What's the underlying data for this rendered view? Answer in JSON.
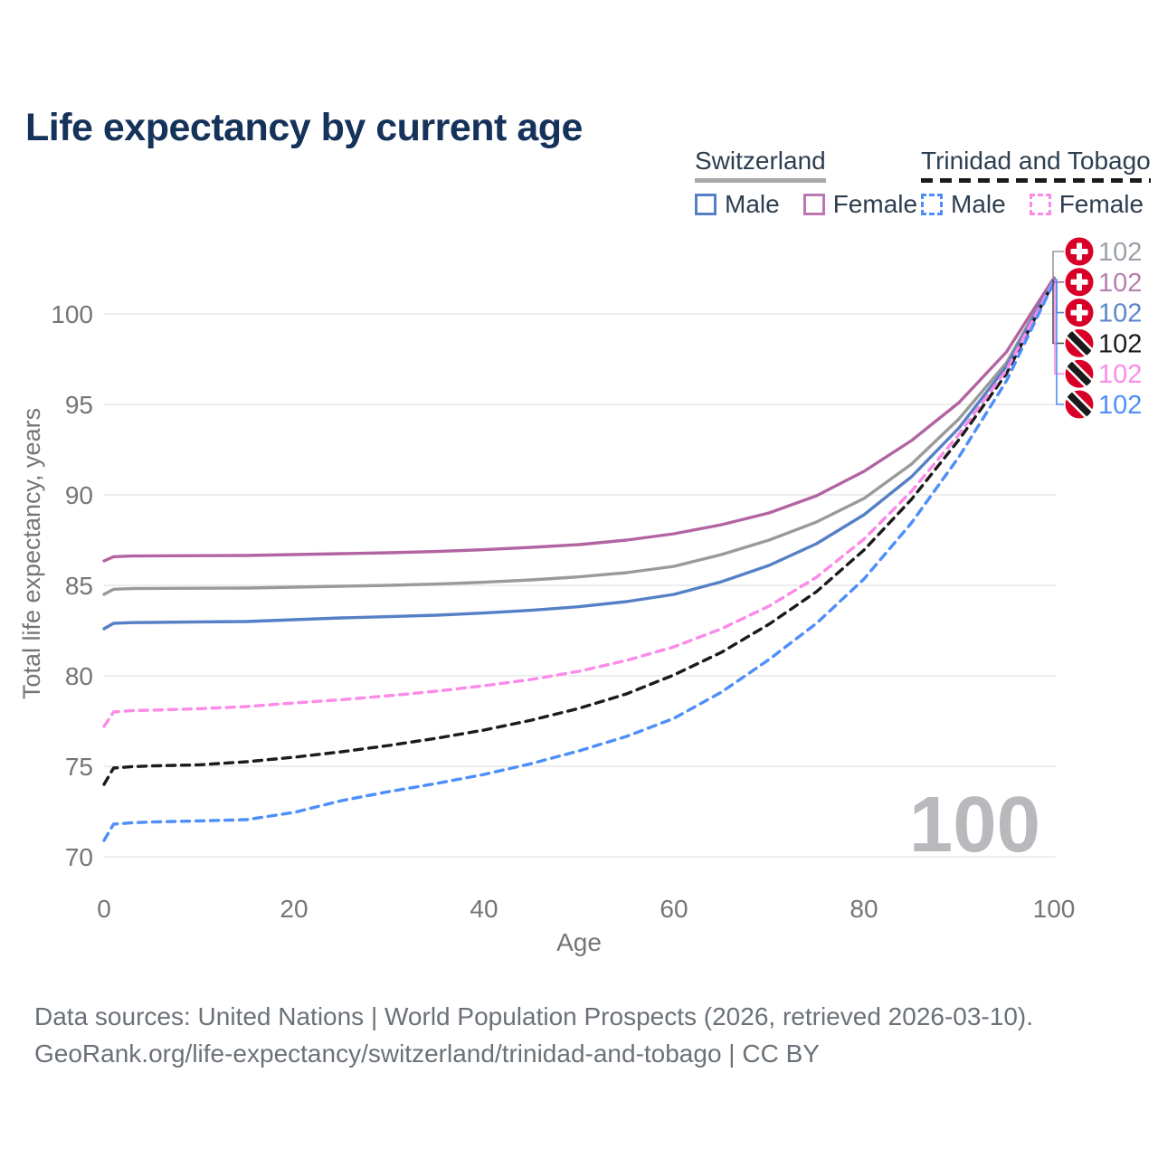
{
  "header": {
    "title": "Life expectancy by current age",
    "title_color": "#15325a"
  },
  "legend": {
    "text_color": "#2d3e50",
    "groups": [
      {
        "name": "Switzerland",
        "underline": "solid",
        "items": [
          {
            "label": "Male",
            "color": "#5580c6",
            "dashed": false
          },
          {
            "label": "Female",
            "color": "#bc77b2",
            "dashed": false
          }
        ]
      },
      {
        "name": "Trinidad and Tobago",
        "underline": "dashed",
        "items": [
          {
            "label": "Male",
            "color": "#4d8efa",
            "dashed": true
          },
          {
            "label": "Female",
            "color": "#fb8ae8",
            "dashed": true
          }
        ]
      }
    ]
  },
  "chart_data": {
    "type": "line",
    "title": "Life expectancy by current age",
    "xlabel": "Age",
    "ylabel": "Total life expectancy, years",
    "xlim": [
      0,
      100
    ],
    "ylim": [
      70,
      102
    ],
    "x_ticks": [
      0,
      20,
      40,
      60,
      80,
      100
    ],
    "y_ticks": [
      70,
      75,
      80,
      85,
      90,
      95,
      100
    ],
    "grid_color": "#e7e7e7",
    "tick_color": "#757575",
    "x": [
      0,
      1,
      3,
      5,
      10,
      15,
      20,
      25,
      30,
      35,
      40,
      45,
      50,
      55,
      60,
      65,
      70,
      75,
      80,
      85,
      90,
      95,
      100
    ],
    "series": [
      {
        "id": "switzerland-both-sexes",
        "country": "Switzerland",
        "color": "#9a9a9a",
        "dashed": false,
        "flag": "switzerland",
        "end_label": "102",
        "end_label_color": "#9ba1a6",
        "values": [
          84.5,
          84.78,
          84.82,
          84.83,
          84.84,
          84.85,
          84.9,
          84.95,
          85.0,
          85.07,
          85.17,
          85.3,
          85.47,
          85.7,
          86.05,
          86.7,
          87.5,
          88.5,
          89.8,
          91.7,
          94.2,
          97.3,
          101.95
        ]
      },
      {
        "id": "switzerland-female",
        "country": "Switzerland",
        "color": "#b264a2",
        "dashed": false,
        "flag": "switzerland",
        "end_label": "102",
        "end_label_color": "#b57fae",
        "values": [
          86.35,
          86.58,
          86.62,
          86.63,
          86.64,
          86.65,
          86.7,
          86.75,
          86.8,
          86.87,
          86.97,
          87.1,
          87.25,
          87.5,
          87.85,
          88.35,
          89.0,
          89.95,
          91.3,
          93.0,
          95.1,
          97.9,
          102.0
        ]
      },
      {
        "id": "switzerland-male",
        "country": "Switzerland",
        "color": "#5580c6",
        "dashed": false,
        "flag": "switzerland",
        "end_label": "102",
        "end_label_color": "#5b86ca",
        "values": [
          82.6,
          82.9,
          82.94,
          82.95,
          82.98,
          83.0,
          83.1,
          83.2,
          83.27,
          83.35,
          83.47,
          83.62,
          83.82,
          84.1,
          84.5,
          85.2,
          86.1,
          87.3,
          88.9,
          91.0,
          93.7,
          97.1,
          101.9
        ]
      },
      {
        "id": "trinidad-and-tobago-both-sexes",
        "country": "Trinidad and Tobago",
        "color": "#1b1b1b",
        "dashed": true,
        "flag": "trinidad-and-tobago",
        "end_label": "102",
        "end_label_color": "#1b1b1b",
        "values": [
          74.0,
          74.9,
          74.98,
          75.02,
          75.08,
          75.25,
          75.5,
          75.8,
          76.15,
          76.55,
          77.0,
          77.55,
          78.2,
          79.0,
          80.05,
          81.3,
          82.85,
          84.65,
          86.95,
          89.75,
          93.05,
          96.7,
          101.8
        ]
      },
      {
        "id": "trinidad-and-tobago-female",
        "country": "Trinidad and Tobago",
        "color": "#fb8ae8",
        "dashed": true,
        "flag": "trinidad-and-tobago",
        "end_label": "102",
        "end_label_color": "#fb8ae8",
        "values": [
          77.2,
          78.0,
          78.08,
          78.1,
          78.18,
          78.3,
          78.5,
          78.68,
          78.9,
          79.15,
          79.45,
          79.8,
          80.25,
          80.85,
          81.6,
          82.6,
          83.85,
          85.45,
          87.55,
          90.2,
          93.35,
          96.9,
          101.85
        ]
      },
      {
        "id": "trinidad-and-tobago-male",
        "country": "Trinidad and Tobago",
        "color": "#4d8efa",
        "dashed": true,
        "flag": "trinidad-and-tobago",
        "end_label": "102",
        "end_label_color": "#4d8efa",
        "values": [
          70.9,
          71.8,
          71.88,
          71.92,
          71.98,
          72.05,
          72.45,
          73.1,
          73.6,
          74.05,
          74.55,
          75.15,
          75.85,
          76.65,
          77.65,
          79.1,
          80.9,
          82.9,
          85.35,
          88.45,
          92.1,
          96.3,
          101.75
        ]
      }
    ],
    "flag_colors": {
      "red": "#d80027",
      "white": "#ffffff",
      "black": "#1b1b1b"
    },
    "watermark": {
      "text": "100",
      "color": "#b9b9bd"
    }
  },
  "footer": {
    "color": "#6b7178",
    "line1": "Data sources: United Nations | World Population Prospects (2026, retrieved 2026-03-10).",
    "line2": "GeoRank.org/life-expectancy/switzerland/trinidad-and-tobago | CC BY"
  }
}
